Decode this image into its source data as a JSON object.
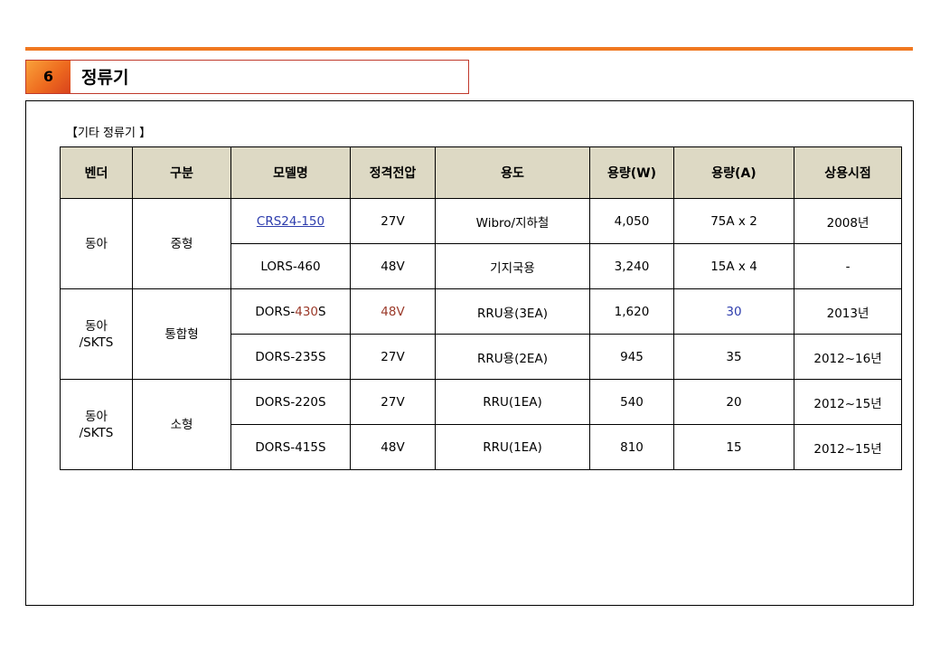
{
  "section": {
    "number": "6",
    "title": "정류기"
  },
  "caption": "【기타 정류기 】",
  "table": {
    "headers": [
      "벤더",
      "구분",
      "모델명",
      "정격전압",
      "용도",
      "용량(W)",
      "용량(A)",
      "상용시점"
    ],
    "groups": [
      {
        "vendor": [
          "동아"
        ],
        "category": "중형",
        "rows": [
          {
            "model": "CRS24-150",
            "voltage": "27V",
            "use": "Wibro/지하철",
            "watt": "4,050",
            "amp": "75A x 2",
            "date": "2008년"
          },
          {
            "model": "LORS-460",
            "voltage": "48V",
            "use": "기지국용",
            "watt": "3,240",
            "amp": "15A x 4",
            "date": "-"
          }
        ]
      },
      {
        "vendor": [
          "동아",
          "/SKTS"
        ],
        "category": "통합형",
        "rows": [
          {
            "model_prefix": "DORS-",
            "model_highlight": "430",
            "model_suffix": "S",
            "voltage": "48V",
            "use": "RRU용(3EA)",
            "watt": "1,620",
            "amp": "30",
            "date": "2013년"
          },
          {
            "model": "DORS-235S",
            "voltage": "27V",
            "use": "RRU용(2EA)",
            "watt": "945",
            "amp": "35",
            "date": "2012~16년"
          }
        ]
      },
      {
        "vendor": [
          "동아",
          "/SKTS"
        ],
        "category": "소형",
        "rows": [
          {
            "model": "DORS-220S",
            "voltage": "27V",
            "use": "RRU(1EA)",
            "watt": "540",
            "amp": "20",
            "date": "2012~15년"
          },
          {
            "model": "DORS-415S",
            "voltage": "48V",
            "use": "RRU(1EA)",
            "watt": "810",
            "amp": "15",
            "date": "2012~15년"
          }
        ]
      }
    ]
  },
  "colors": {
    "accent_rule": "#f07820",
    "header_fill": "#ddd9c4",
    "highlight_red": "#9b3a2a",
    "highlight_blue": "#2e3dad"
  }
}
